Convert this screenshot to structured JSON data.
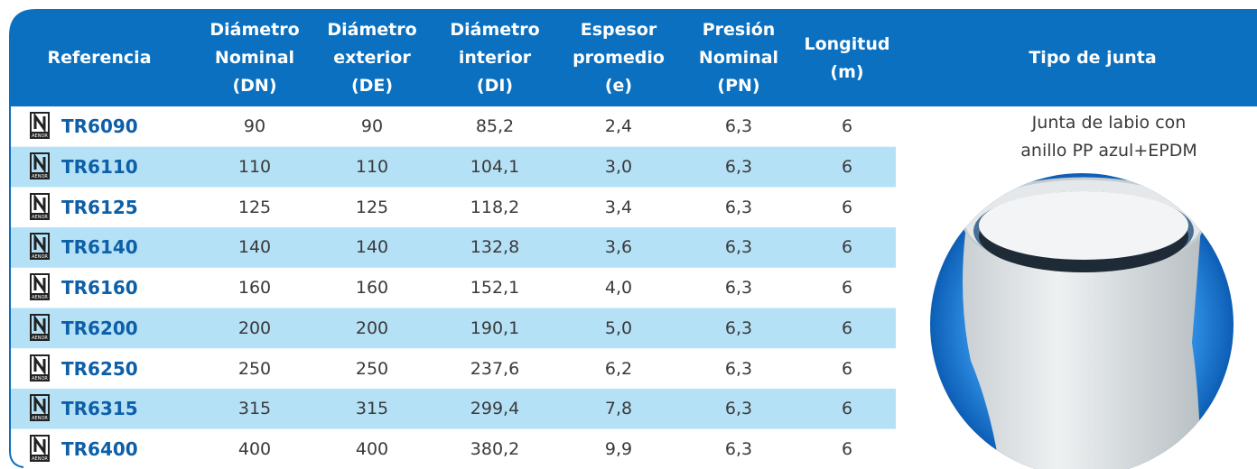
{
  "table": {
    "columns": [
      [
        "Referencia"
      ],
      [
        "Diámetro",
        "Nominal",
        "(DN)"
      ],
      [
        "Diámetro",
        "exterior",
        "(DE)"
      ],
      [
        "Diámetro",
        "interior",
        "(DI)"
      ],
      [
        "Espesor",
        "promedio",
        "(e)"
      ],
      [
        "Presión",
        "Nominal",
        "(PN)"
      ],
      [
        "Longitud",
        "(m)"
      ],
      [
        "Tipo de junta"
      ]
    ],
    "certification_mark": "AENOR",
    "rows": [
      [
        "TR6090",
        "90",
        "90",
        "85,2",
        "2,4",
        "6,3",
        "6"
      ],
      [
        "TR6110",
        "110",
        "110",
        "104,1",
        "3,0",
        "6,3",
        "6"
      ],
      [
        "TR6125",
        "125",
        "125",
        "118,2",
        "3,4",
        "6,3",
        "6"
      ],
      [
        "TR6140",
        "140",
        "140",
        "132,8",
        "3,6",
        "6,3",
        "6"
      ],
      [
        "TR6160",
        "160",
        "160",
        "152,1",
        "4,0",
        "6,3",
        "6"
      ],
      [
        "TR6200",
        "200",
        "200",
        "190,1",
        "5,0",
        "6,3",
        "6"
      ],
      [
        "TR6250",
        "250",
        "250",
        "237,6",
        "6,2",
        "6,3",
        "6"
      ],
      [
        "TR6315",
        "315",
        "315",
        "299,4",
        "7,8",
        "6,3",
        "6"
      ],
      [
        "TR6400",
        "400",
        "400",
        "380,2",
        "9,9",
        "6,3",
        "6"
      ]
    ],
    "joint_description": [
      "Junta de labio con",
      "anillo PP azul+EPDM"
    ]
  }
}
